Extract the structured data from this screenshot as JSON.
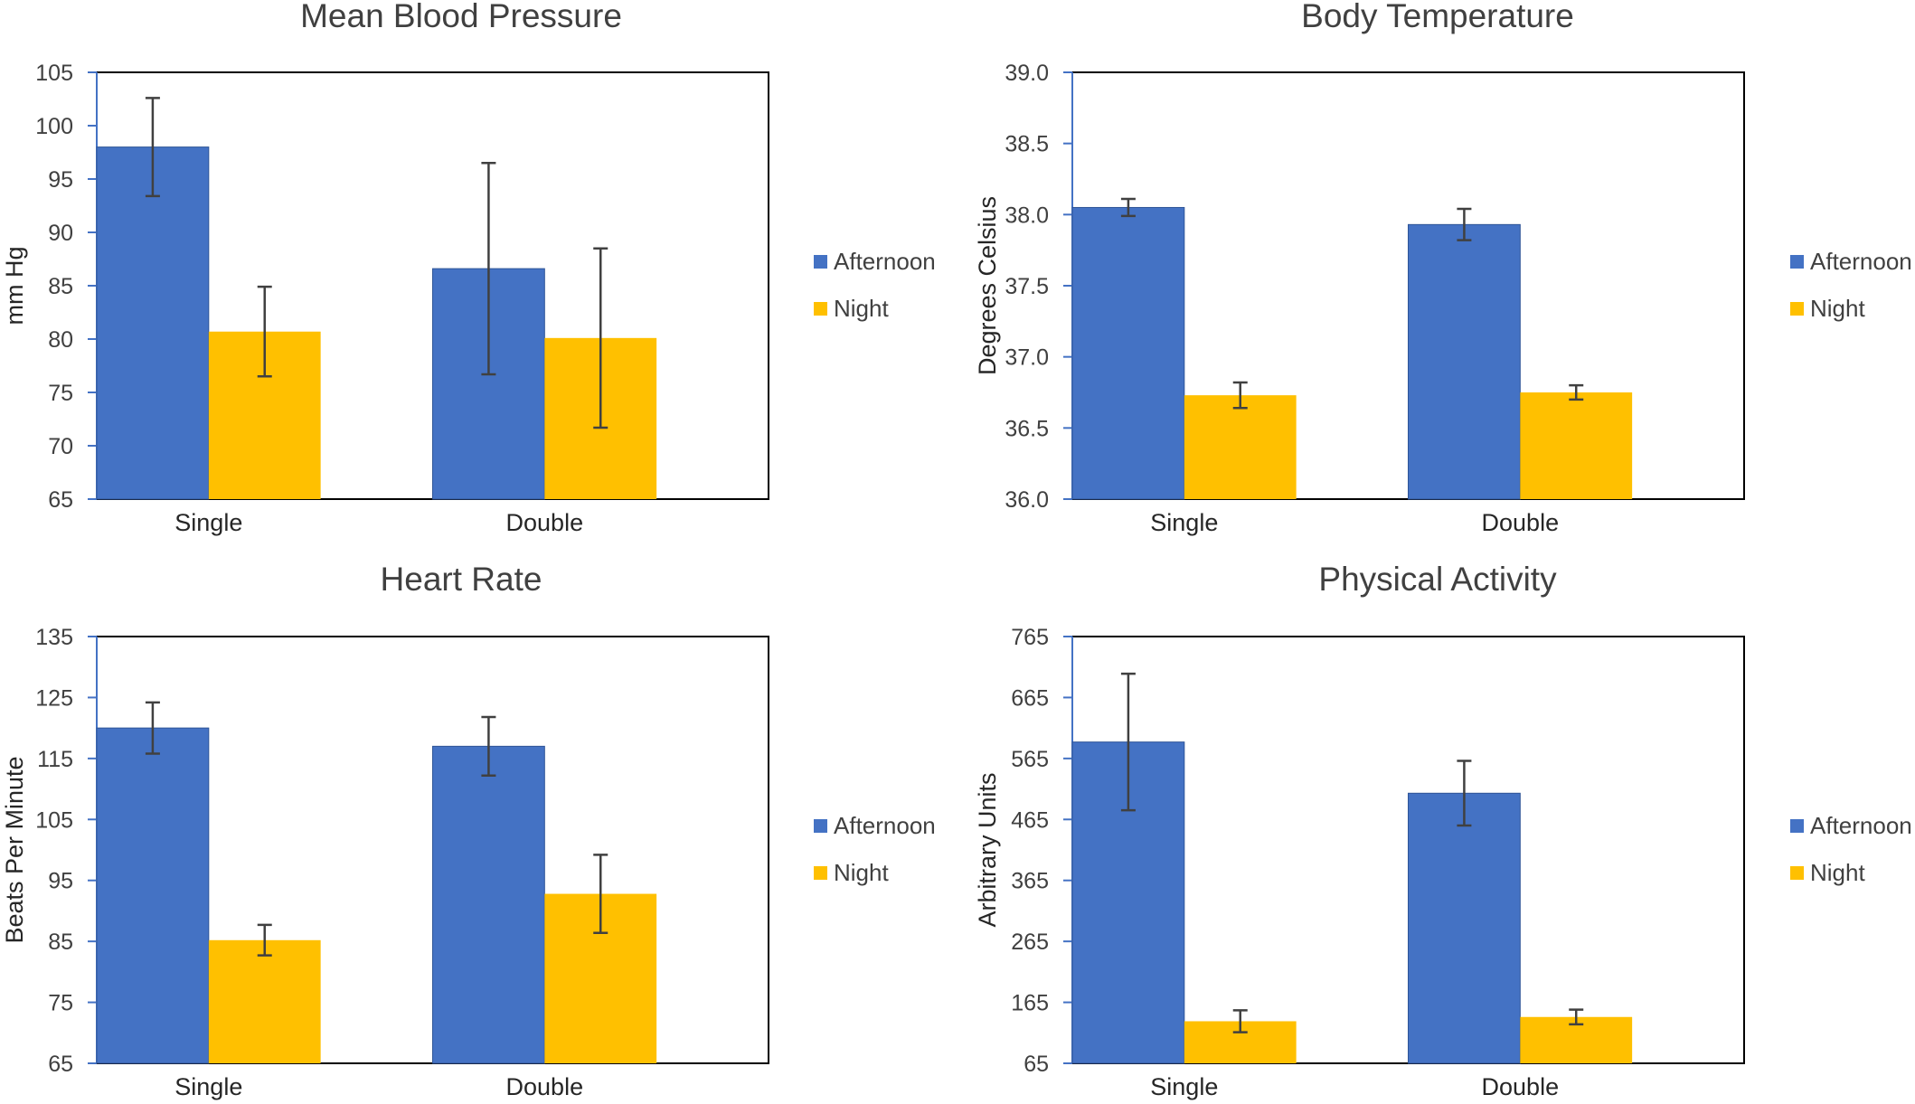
{
  "colors": {
    "afternoon": "#4472C4",
    "night": "#FFC000",
    "axis": "#4472C4",
    "errorbar": "#404040"
  },
  "legend": {
    "afternoon": "Afternoon",
    "night": "Night"
  },
  "chart_data": [
    {
      "type": "bar",
      "title": "Mean Blood Pressure",
      "xlabel": "",
      "ylabel": "mm Hg",
      "ylim": [
        65,
        105
      ],
      "yticks": [
        "65",
        "70",
        "75",
        "80",
        "85",
        "90",
        "95",
        "100",
        "105"
      ],
      "categories": [
        "Single",
        "Double"
      ],
      "series": [
        {
          "name": "Afternoon",
          "values": [
            98.0,
            86.6
          ],
          "errors": [
            4.6,
            9.9
          ]
        },
        {
          "name": "Night",
          "values": [
            80.7,
            80.1
          ],
          "errors": [
            4.2,
            8.4
          ]
        }
      ],
      "legend_position": "right",
      "grid": false
    },
    {
      "type": "bar",
      "title": "Body Temperature",
      "xlabel": "",
      "ylabel": "Degrees Celsius",
      "ylim": [
        36.0,
        39.0
      ],
      "yticks": [
        "36.0",
        "36.5",
        "37.0",
        "37.5",
        "38.0",
        "38.5",
        "39.0"
      ],
      "categories": [
        "Single",
        "Double"
      ],
      "series": [
        {
          "name": "Afternoon",
          "values": [
            38.05,
            37.93
          ],
          "errors": [
            0.06,
            0.11
          ]
        },
        {
          "name": "Night",
          "values": [
            36.73,
            36.75
          ],
          "errors": [
            0.09,
            0.05
          ]
        }
      ],
      "legend_position": "right",
      "grid": false
    },
    {
      "type": "bar",
      "title": "Heart Rate",
      "xlabel": "",
      "ylabel": "Beats Per Minute",
      "ylim": [
        65,
        135
      ],
      "yticks": [
        "65",
        "75",
        "85",
        "95",
        "105",
        "115",
        "125",
        "135"
      ],
      "categories": [
        "Single",
        "Double"
      ],
      "series": [
        {
          "name": "Afternoon",
          "values": [
            120.0,
            117.0
          ],
          "errors": [
            4.2,
            4.8
          ]
        },
        {
          "name": "Night",
          "values": [
            85.2,
            92.8
          ],
          "errors": [
            2.5,
            6.4
          ]
        }
      ],
      "legend_position": "right",
      "grid": false
    },
    {
      "type": "bar",
      "title": "Physical Activity",
      "xlabel": "",
      "ylabel": "Arbitrary Units",
      "ylim": [
        65,
        765
      ],
      "yticks": [
        "65",
        "165",
        "265",
        "365",
        "465",
        "565",
        "665",
        "765"
      ],
      "categories": [
        "Single",
        "Double"
      ],
      "series": [
        {
          "name": "Afternoon",
          "values": [
            592,
            508
          ],
          "errors": [
            112,
            53
          ]
        },
        {
          "name": "Night",
          "values": [
            134,
            141
          ],
          "errors": [
            18,
            12
          ]
        }
      ],
      "legend_position": "right",
      "grid": false
    }
  ]
}
